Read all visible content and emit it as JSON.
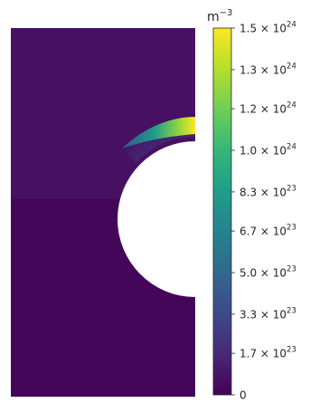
{
  "chart_data": {
    "type": "heatmap",
    "colormap": "viridis",
    "colorbar": {
      "unit_base": "m",
      "unit_exp": "−3",
      "vmin": 0,
      "vmax": 1.5e+24,
      "ticks": [
        {
          "value": 1.5e+24,
          "mantissa": "1.5",
          "exp": "24"
        },
        {
          "value": 1.33e+24,
          "mantissa": "1.3",
          "exp": "24"
        },
        {
          "value": 1.17e+24,
          "mantissa": "1.2",
          "exp": "24"
        },
        {
          "value": 1e+24,
          "mantissa": "1.0",
          "exp": "24"
        },
        {
          "value": 8.3e+23,
          "mantissa": "8.3",
          "exp": "23"
        },
        {
          "value": 6.7e+23,
          "mantissa": "6.7",
          "exp": "23"
        },
        {
          "value": 5e+23,
          "mantissa": "5.0",
          "exp": "23"
        },
        {
          "value": 3.3e+23,
          "mantissa": "3.3",
          "exp": "23"
        },
        {
          "value": 1.7e+23,
          "mantissa": "1.7",
          "exp": "23"
        },
        {
          "value": 0,
          "mantissa": "0",
          "exp": ""
        }
      ]
    },
    "field": {
      "background_value": 7e+22,
      "bottom_value": 1.5e+22,
      "peak_value": 1.5e+24,
      "obstacle": "semicircle"
    }
  },
  "colors": {
    "viridis_stops": [
      "#440154",
      "#482878",
      "#3e4989",
      "#31688e",
      "#26828e",
      "#1f9e89",
      "#35b779",
      "#6ece58",
      "#b5de2b",
      "#fde725"
    ]
  }
}
